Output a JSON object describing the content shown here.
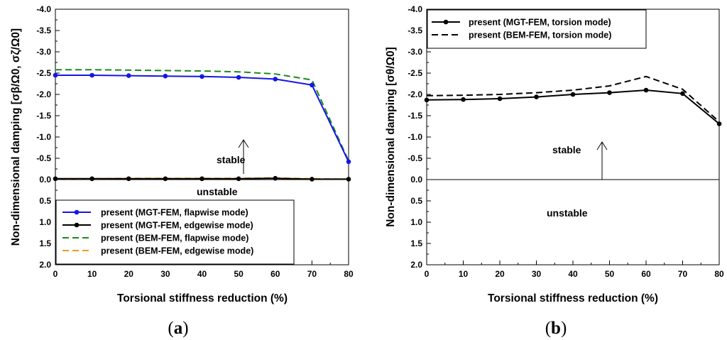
{
  "chart_data": [
    {
      "type": "line",
      "panel": "a",
      "panel_label": "a",
      "x": [
        0,
        10,
        20,
        30,
        40,
        50,
        60,
        70,
        80
      ],
      "xlim": [
        0,
        80
      ],
      "ylim": [
        2.0,
        -4.0
      ],
      "xticks": [
        "0",
        "10",
        "20",
        "30",
        "40",
        "50",
        "60",
        "70",
        "80"
      ],
      "yticks": [
        "-4.0",
        "-3.5",
        "-3.0",
        "-2.5",
        "-2.0",
        "-1.5",
        "-1.0",
        "-0.5",
        "0.0",
        "0.5",
        "1.0",
        "1.5",
        "2.0"
      ],
      "xlabel": "Torsional stiffness reduction (%)",
      "ylabel": "Non-dimensional damping [σβ/Ω0, σζ/Ω0]",
      "series": [
        {
          "name": "present (MGT-FEM, flapwise mode)",
          "color": "#1515e8",
          "dash": "solid",
          "markers": true,
          "values": [
            -2.45,
            -2.45,
            -2.44,
            -2.43,
            -2.42,
            -2.4,
            -2.36,
            -2.22,
            -0.42
          ]
        },
        {
          "name": "present (MGT-FEM, edgewise mode)",
          "color": "#000000",
          "dash": "solid",
          "markers": true,
          "values": [
            -0.02,
            -0.02,
            -0.02,
            -0.02,
            -0.02,
            -0.02,
            -0.03,
            -0.01,
            -0.01
          ]
        },
        {
          "name": "present (BEM-FEM, flapwise mode)",
          "color": "#1a8a1a",
          "dash": "dashed",
          "markers": false,
          "values": [
            -2.58,
            -2.58,
            -2.57,
            -2.56,
            -2.55,
            -2.53,
            -2.48,
            -2.34,
            -0.44
          ]
        },
        {
          "name": "present (BEM-FEM, edgewise mode)",
          "color": "#f59a1a",
          "dash": "dashed",
          "markers": false,
          "values": [
            -0.02,
            -0.02,
            -0.03,
            -0.03,
            -0.03,
            -0.03,
            -0.04,
            -0.02,
            -0.01
          ]
        }
      ],
      "annotations": {
        "stable": "stable",
        "unstable": "unstable"
      },
      "legend_position": "bottom-left"
    },
    {
      "type": "line",
      "panel": "b",
      "panel_label": "b",
      "x": [
        0,
        10,
        20,
        30,
        40,
        50,
        60,
        70,
        80
      ],
      "xlim": [
        0,
        80
      ],
      "ylim": [
        2.0,
        -4.0
      ],
      "xticks": [
        "0",
        "10",
        "20",
        "30",
        "40",
        "50",
        "60",
        "70",
        "80"
      ],
      "yticks": [
        "-4.0",
        "-3.5",
        "-3.0",
        "-2.5",
        "-2.0",
        "-1.5",
        "-1.0",
        "-0.5",
        "0.0",
        "0.5",
        "1.0",
        "1.5",
        "2.0"
      ],
      "xlabel": "Torsional stiffness reduction (%)",
      "ylabel": "Non-dimensional damping [σθ/Ω0]",
      "series": [
        {
          "name": "present (MGT-FEM, torsion mode)",
          "color": "#000000",
          "dash": "solid",
          "markers": true,
          "values": [
            -1.87,
            -1.88,
            -1.9,
            -1.94,
            -2.0,
            -2.04,
            -2.1,
            -2.02,
            -1.31
          ]
        },
        {
          "name": "present (BEM-FEM, torsion mode)",
          "color": "#000000",
          "dash": "dashed",
          "markers": false,
          "values": [
            -1.97,
            -1.98,
            -2.0,
            -2.04,
            -2.1,
            -2.2,
            -2.42,
            -2.12,
            -1.36
          ]
        }
      ],
      "annotations": {
        "stable": "stable",
        "unstable": "unstable"
      },
      "legend_position": "top-left"
    }
  ]
}
